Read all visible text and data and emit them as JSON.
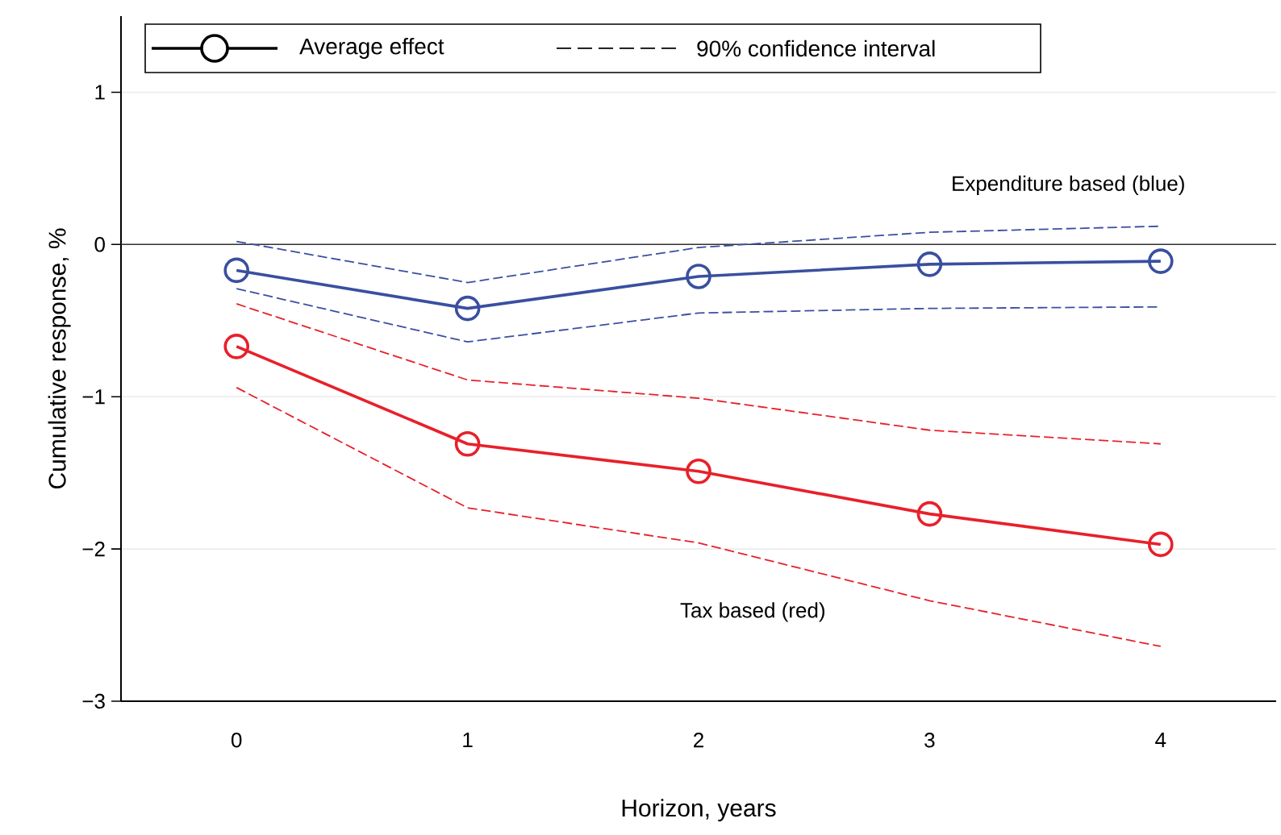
{
  "chart_data": {
    "type": "line",
    "xlabel": "Horizon, years",
    "ylabel": "Cumulative response, %",
    "categories": [
      "0",
      "1",
      "2",
      "3",
      "4"
    ],
    "ylim": [
      -3,
      1.5
    ],
    "yticks": [
      {
        "value": -3,
        "label": "−3"
      },
      {
        "value": -2,
        "label": "−2"
      },
      {
        "value": -1,
        "label": "−1"
      },
      0,
      1
    ],
    "grid": "y",
    "ref_lines": [
      {
        "axis": "y",
        "value": 0,
        "color": "#333333"
      }
    ],
    "annotations": [
      "Average effect",
      "90% confidence interval",
      "Expenditure based (blue)",
      "Tax based (red)"
    ],
    "series": [
      {
        "color": "#3a4fa0",
        "marker": "circle",
        "line_style": "solid",
        "values": [
          -0.17,
          -0.42,
          -0.21,
          -0.13,
          -0.11
        ]
      },
      {
        "color": "#3a4fa0",
        "marker": "none",
        "line_style": "dashed",
        "values": [
          0.02,
          -0.25,
          -0.02,
          0.08,
          0.12
        ]
      },
      {
        "color": "#3a4fa0",
        "marker": "none",
        "line_style": "dashed",
        "values": [
          -0.29,
          -0.64,
          -0.45,
          -0.42,
          -0.41
        ]
      },
      {
        "color": "#e8202a",
        "marker": "circle",
        "line_style": "solid",
        "values": [
          -0.67,
          -1.31,
          -1.49,
          -1.77,
          -1.97
        ]
      },
      {
        "color": "#e8202a",
        "marker": "none",
        "line_style": "dashed",
        "values": [
          -0.39,
          -0.89,
          -1.01,
          -1.22,
          -1.31
        ]
      },
      {
        "color": "#e8202a",
        "marker": "none",
        "line_style": "dashed",
        "values": [
          -0.94,
          -1.73,
          -1.96,
          -2.34,
          -2.64
        ]
      }
    ]
  }
}
